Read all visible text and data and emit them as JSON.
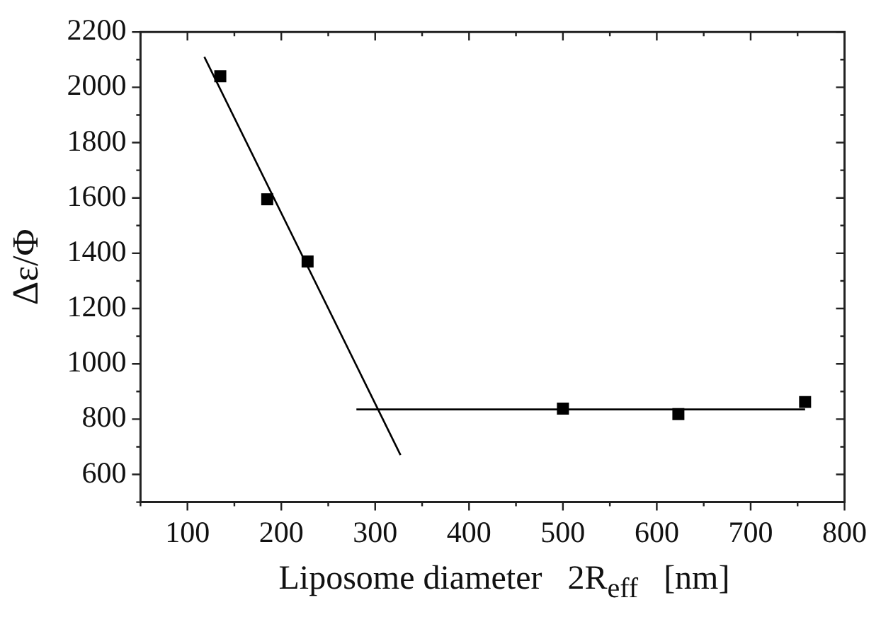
{
  "chart_data": {
    "type": "scatter",
    "xlabel": "Liposome diameter   2R$_{eff}$   [nm]",
    "ylabel": "Δε/Φ",
    "xlim": [
      50,
      800
    ],
    "xticks": [
      100,
      200,
      300,
      400,
      500,
      600,
      700,
      800
    ],
    "ylim": [
      500,
      2200
    ],
    "yticks": [
      600,
      800,
      1000,
      1200,
      1400,
      1600,
      1800,
      2000,
      2200
    ],
    "grid": false,
    "legend": false,
    "marker": "square",
    "series": [
      {
        "color": "#000000",
        "x": [
          135,
          185,
          228,
          500,
          623,
          758
        ],
        "values": [
          2040,
          1595,
          1370,
          838,
          818,
          862
        ]
      },
      {
        "type": "line",
        "color": "#000000",
        "marker": "none",
        "x": [
          118,
          327
        ],
        "values": [
          2110,
          670
        ]
      },
      {
        "type": "line",
        "color": "#000000",
        "marker": "none",
        "x": [
          280,
          758
        ],
        "values": [
          835,
          835
        ]
      }
    ]
  }
}
